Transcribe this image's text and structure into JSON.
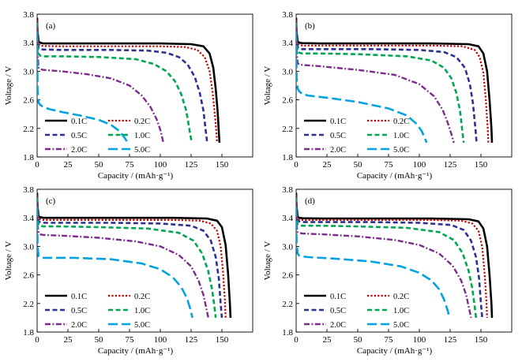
{
  "chart_data": [
    {
      "type": "line",
      "panel_label": "(a)",
      "xlabel": "Capacity / (mAh·g⁻¹)",
      "ylabel": "Voltage / V",
      "xlim": [
        0,
        175
      ],
      "ylim": [
        1.8,
        3.8
      ],
      "xticks": [
        "0",
        "25",
        "50",
        "75",
        "100",
        "125",
        "150"
      ],
      "yticks": [
        "1.8",
        "2.2",
        "2.6",
        "3.0",
        "3.4",
        "3.8"
      ],
      "grid": false,
      "legend_position": "lower-left",
      "series": [
        {
          "name": "0.1C",
          "color": "#000000",
          "dash": "solid",
          "x": [
            0,
            0.4,
            1.2,
            2.5,
            5,
            20,
            60,
            100,
            125,
            135,
            140,
            143,
            145,
            146.5,
            147.5,
            148
          ],
          "y": [
            3.75,
            3.55,
            3.42,
            3.4,
            3.39,
            3.39,
            3.39,
            3.39,
            3.38,
            3.35,
            3.25,
            3.05,
            2.75,
            2.45,
            2.15,
            2.0
          ]
        },
        {
          "name": "0.2C",
          "color": "#c00000",
          "dash": "dot",
          "x": [
            0,
            0.4,
            1.2,
            2.5,
            5,
            20,
            60,
            100,
            120,
            130,
            136,
            140,
            142.5,
            144,
            145.5,
            146
          ],
          "y": [
            3.72,
            3.5,
            3.38,
            3.36,
            3.355,
            3.35,
            3.35,
            3.35,
            3.34,
            3.3,
            3.2,
            3.0,
            2.7,
            2.45,
            2.15,
            2.0
          ]
        },
        {
          "name": "0.5C",
          "color": "#2e3192",
          "dash": "dash",
          "x": [
            0,
            0.4,
            1.2,
            2.5,
            5,
            20,
            60,
            90,
            105,
            115,
            122,
            128,
            132,
            135,
            137,
            138
          ],
          "y": [
            3.7,
            3.45,
            3.33,
            3.31,
            3.305,
            3.3,
            3.3,
            3.29,
            3.26,
            3.2,
            3.1,
            2.92,
            2.7,
            2.45,
            2.15,
            2.0
          ]
        },
        {
          "name": "1.0C",
          "color": "#00a651",
          "dash": "dash",
          "x": [
            0,
            0.4,
            1.2,
            2.5,
            5,
            20,
            50,
            80,
            95,
            105,
            112,
            117,
            121,
            124,
            125.5
          ],
          "y": [
            3.68,
            3.4,
            3.24,
            3.22,
            3.21,
            3.21,
            3.2,
            3.17,
            3.1,
            3.0,
            2.86,
            2.68,
            2.45,
            2.15,
            2.0
          ]
        },
        {
          "name": "2.0C",
          "color": "#7b2c8b",
          "dash": "dashdot",
          "x": [
            0,
            0.4,
            1.2,
            2.5,
            5,
            20,
            40,
            60,
            75,
            85,
            92,
            97,
            100,
            102.5
          ],
          "y": [
            3.62,
            3.25,
            3.05,
            3.03,
            3.02,
            3.0,
            2.96,
            2.9,
            2.8,
            2.66,
            2.5,
            2.33,
            2.18,
            2.0
          ]
        },
        {
          "name": "5.0C",
          "color": "#00a3e0",
          "dash": "longdash",
          "x": [
            0,
            0.4,
            1.2,
            2.5,
            5,
            10,
            20,
            35,
            50,
            60,
            67,
            71,
            73.5
          ],
          "y": [
            3.55,
            2.75,
            2.56,
            2.53,
            2.5,
            2.47,
            2.43,
            2.38,
            2.32,
            2.25,
            2.16,
            2.07,
            2.0
          ]
        }
      ]
    },
    {
      "type": "line",
      "panel_label": "(b)",
      "xlabel": "Capacity / (mAh·g⁻¹)",
      "ylabel": "Voltage / V",
      "xlim": [
        0,
        175
      ],
      "ylim": [
        1.8,
        3.8
      ],
      "xticks": [
        "0",
        "25",
        "50",
        "75",
        "100",
        "125",
        "150"
      ],
      "yticks": [
        "1.8",
        "2.2",
        "2.6",
        "3.0",
        "3.4",
        "3.8"
      ],
      "grid": false,
      "legend_position": "lower-left",
      "series": [
        {
          "name": "0.1C",
          "color": "#000000",
          "dash": "solid",
          "x": [
            0,
            0.4,
            1.2,
            2.5,
            5,
            20,
            60,
            110,
            140,
            148,
            152,
            155,
            157,
            158.5,
            159
          ],
          "y": [
            3.75,
            3.55,
            3.42,
            3.4,
            3.395,
            3.39,
            3.39,
            3.39,
            3.38,
            3.35,
            3.25,
            3.0,
            2.6,
            2.2,
            2.0
          ]
        },
        {
          "name": "0.2C",
          "color": "#c00000",
          "dash": "dot",
          "x": [
            0,
            0.4,
            1.2,
            2.5,
            5,
            20,
            60,
            110,
            135,
            145,
            149,
            152,
            154,
            155.5,
            156
          ],
          "y": [
            3.72,
            3.5,
            3.38,
            3.37,
            3.36,
            3.36,
            3.36,
            3.36,
            3.35,
            3.3,
            3.2,
            2.98,
            2.6,
            2.2,
            2.0
          ]
        },
        {
          "name": "0.5C",
          "color": "#2e3192",
          "dash": "dash",
          "x": [
            0,
            0.4,
            1.2,
            2.5,
            5,
            20,
            60,
            100,
            120,
            130,
            137,
            141,
            143.5,
            145.5,
            146.5
          ],
          "y": [
            3.7,
            3.45,
            3.34,
            3.32,
            3.31,
            3.31,
            3.31,
            3.3,
            3.27,
            3.2,
            3.05,
            2.82,
            2.55,
            2.2,
            2.0
          ]
        },
        {
          "name": "1.0C",
          "color": "#00a651",
          "dash": "dash",
          "x": [
            0,
            0.4,
            1.2,
            2.5,
            5,
            20,
            50,
            90,
            110,
            120,
            126,
            130,
            133,
            135,
            136
          ],
          "y": [
            3.68,
            3.4,
            3.27,
            3.26,
            3.25,
            3.25,
            3.24,
            3.21,
            3.15,
            3.05,
            2.9,
            2.7,
            2.45,
            2.15,
            2.0
          ]
        },
        {
          "name": "2.0C",
          "color": "#7b2c8b",
          "dash": "dashdot",
          "x": [
            0,
            0.4,
            1.2,
            2.5,
            5,
            20,
            50,
            80,
            100,
            112,
            119,
            123,
            126,
            128
          ],
          "y": [
            3.62,
            3.3,
            3.11,
            3.1,
            3.09,
            3.07,
            3.02,
            2.95,
            2.82,
            2.65,
            2.46,
            2.28,
            2.12,
            2.0
          ]
        },
        {
          "name": "5.0C",
          "color": "#00a3e0",
          "dash": "longdash",
          "x": [
            0,
            0.4,
            1.2,
            2.5,
            5,
            10,
            25,
            50,
            75,
            90,
            98,
            102,
            104.5,
            106
          ],
          "y": [
            3.55,
            2.9,
            2.76,
            2.72,
            2.68,
            2.66,
            2.63,
            2.57,
            2.48,
            2.38,
            2.26,
            2.16,
            2.06,
            2.0
          ]
        }
      ]
    },
    {
      "type": "line",
      "panel_label": "(c)",
      "xlabel": "Capacity / (mAh·g⁻¹)",
      "ylabel": "Voltage / V",
      "xlim": [
        0,
        175
      ],
      "ylim": [
        1.8,
        3.8
      ],
      "xticks": [
        "0",
        "25",
        "50",
        "75",
        "100",
        "125",
        "150"
      ],
      "yticks": [
        "1.8",
        "2.2",
        "2.6",
        "3.0",
        "3.4",
        "3.8"
      ],
      "grid": false,
      "legend_position": "lower-left",
      "series": [
        {
          "name": "0.1C",
          "color": "#000000",
          "dash": "solid",
          "x": [
            0,
            0.4,
            1.2,
            2.5,
            5,
            20,
            60,
            110,
            138,
            146,
            150,
            153,
            155,
            156.5,
            157
          ],
          "y": [
            3.75,
            3.55,
            3.42,
            3.41,
            3.4,
            3.4,
            3.4,
            3.4,
            3.39,
            3.36,
            3.27,
            3.02,
            2.62,
            2.2,
            2.0
          ]
        },
        {
          "name": "0.2C",
          "color": "#c00000",
          "dash": "dot",
          "x": [
            0,
            0.4,
            1.2,
            2.5,
            5,
            20,
            60,
            110,
            132,
            141,
            146,
            149,
            151,
            152.5,
            153
          ],
          "y": [
            3.72,
            3.5,
            3.39,
            3.38,
            3.37,
            3.37,
            3.37,
            3.37,
            3.36,
            3.32,
            3.22,
            3.0,
            2.62,
            2.22,
            2.0
          ]
        },
        {
          "name": "0.5C",
          "color": "#2e3192",
          "dash": "dash",
          "x": [
            0,
            0.4,
            1.2,
            2.5,
            5,
            20,
            60,
            100,
            125,
            135,
            141,
            145,
            147.5,
            149,
            150
          ],
          "y": [
            3.7,
            3.45,
            3.35,
            3.34,
            3.33,
            3.33,
            3.33,
            3.32,
            3.29,
            3.22,
            3.08,
            2.85,
            2.55,
            2.2,
            2.0
          ]
        },
        {
          "name": "1.0C",
          "color": "#00a651",
          "dash": "dash",
          "x": [
            0,
            0.4,
            1.2,
            2.5,
            5,
            20,
            50,
            90,
            115,
            127,
            134,
            139,
            142,
            144,
            145
          ],
          "y": [
            3.68,
            3.4,
            3.3,
            3.29,
            3.28,
            3.28,
            3.27,
            3.25,
            3.19,
            3.08,
            2.9,
            2.65,
            2.4,
            2.15,
            2.0
          ]
        },
        {
          "name": "2.0C",
          "color": "#7b2c8b",
          "dash": "dashdot",
          "x": [
            0,
            0.4,
            1.2,
            2.5,
            5,
            20,
            50,
            80,
            100,
            115,
            125,
            131,
            135,
            137.5,
            139
          ],
          "y": [
            3.62,
            3.3,
            3.19,
            3.17,
            3.16,
            3.15,
            3.12,
            3.07,
            3.0,
            2.88,
            2.72,
            2.52,
            2.32,
            2.12,
            2.0
          ]
        },
        {
          "name": "5.0C",
          "color": "#00a3e0",
          "dash": "longdash",
          "x": [
            0,
            0.4,
            1.2,
            2.5,
            5,
            10,
            30,
            60,
            85,
            100,
            110,
            117,
            121.5,
            124.5,
            126
          ],
          "y": [
            3.55,
            3.0,
            2.86,
            2.85,
            2.84,
            2.84,
            2.84,
            2.82,
            2.76,
            2.68,
            2.57,
            2.43,
            2.28,
            2.12,
            2.0
          ]
        }
      ]
    },
    {
      "type": "line",
      "panel_label": "(d)",
      "xlabel": "Capacity / (mAh·g⁻¹)",
      "ylabel": "Voltage / V",
      "xlim": [
        0,
        175
      ],
      "ylim": [
        1.8,
        3.8
      ],
      "xticks": [
        "0",
        "25",
        "50",
        "75",
        "100",
        "125",
        "150"
      ],
      "yticks": [
        "1.8",
        "2.2",
        "2.6",
        "3.0",
        "3.4",
        "3.8"
      ],
      "grid": false,
      "legend_position": "lower-left",
      "series": [
        {
          "name": "0.1C",
          "color": "#000000",
          "dash": "solid",
          "x": [
            0,
            0.4,
            1.2,
            2.5,
            5,
            20,
            60,
            110,
            140,
            148,
            152,
            155,
            157,
            158.5,
            159
          ],
          "y": [
            3.75,
            3.55,
            3.42,
            3.4,
            3.395,
            3.39,
            3.39,
            3.39,
            3.38,
            3.35,
            3.25,
            3.0,
            2.6,
            2.2,
            2.0
          ]
        },
        {
          "name": "0.2C",
          "color": "#c00000",
          "dash": "dot",
          "x": [
            0,
            0.4,
            1.2,
            2.5,
            5,
            20,
            60,
            110,
            134,
            143,
            148,
            151,
            153,
            154.5,
            155
          ],
          "y": [
            3.72,
            3.5,
            3.39,
            3.38,
            3.37,
            3.37,
            3.37,
            3.37,
            3.36,
            3.32,
            3.22,
            3.0,
            2.62,
            2.22,
            2.0
          ]
        },
        {
          "name": "0.5C",
          "color": "#2e3192",
          "dash": "dash",
          "x": [
            0,
            0.4,
            1.2,
            2.5,
            5,
            20,
            60,
            100,
            126,
            136,
            142,
            146,
            148.5,
            150,
            151
          ],
          "y": [
            3.7,
            3.45,
            3.36,
            3.35,
            3.34,
            3.34,
            3.34,
            3.33,
            3.3,
            3.23,
            3.08,
            2.85,
            2.55,
            2.2,
            2.0
          ]
        },
        {
          "name": "1.0C",
          "color": "#00a651",
          "dash": "dash",
          "x": [
            0,
            0.4,
            1.2,
            2.5,
            5,
            20,
            50,
            90,
            116,
            128,
            135,
            140,
            143,
            145,
            146
          ],
          "y": [
            3.68,
            3.4,
            3.31,
            3.3,
            3.29,
            3.29,
            3.28,
            3.26,
            3.2,
            3.09,
            2.91,
            2.66,
            2.41,
            2.15,
            2.0
          ]
        },
        {
          "name": "2.0C",
          "color": "#7b2c8b",
          "dash": "dashdot",
          "x": [
            0,
            0.4,
            1.2,
            2.5,
            5,
            20,
            50,
            80,
            100,
            116,
            127,
            134,
            138,
            140.5,
            142
          ],
          "y": [
            3.62,
            3.3,
            3.2,
            3.19,
            3.18,
            3.17,
            3.14,
            3.09,
            3.02,
            2.9,
            2.73,
            2.52,
            2.32,
            2.12,
            2.0
          ]
        },
        {
          "name": "5.0C",
          "color": "#00a3e0",
          "dash": "longdash",
          "x": [
            0,
            0.4,
            1.2,
            2.5,
            5,
            10,
            30,
            60,
            85,
            100,
            110,
            116,
            120,
            123,
            124.5
          ],
          "y": [
            3.55,
            3.05,
            2.9,
            2.87,
            2.86,
            2.85,
            2.83,
            2.79,
            2.72,
            2.63,
            2.52,
            2.4,
            2.26,
            2.1,
            2.0
          ]
        }
      ]
    }
  ]
}
